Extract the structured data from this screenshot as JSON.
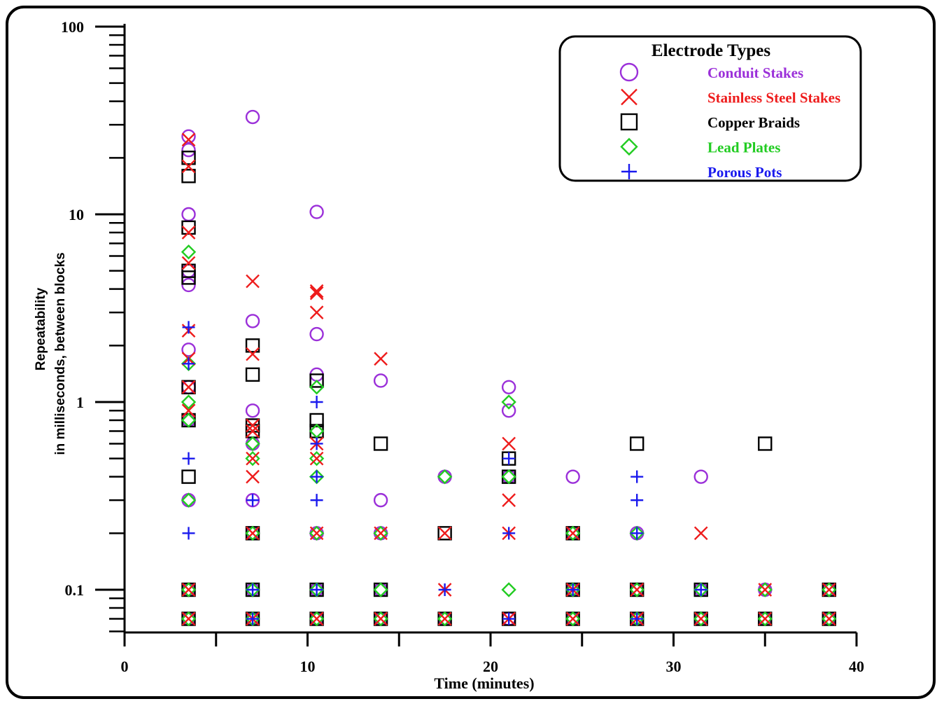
{
  "chart_data": {
    "type": "scatter",
    "xlabel": "Time (minutes)",
    "ylabel_lines": [
      "Repeatability",
      "in milliseconds, between blocks"
    ],
    "xlim": [
      0,
      40
    ],
    "ylim": [
      0.06,
      100
    ],
    "y_scale": "log",
    "x_ticks": [
      0,
      10,
      20,
      30,
      40
    ],
    "x_tick_labels": [
      "0",
      "10",
      "20",
      "30",
      "40"
    ],
    "y_major_ticks": [
      0.1,
      1,
      10,
      100
    ],
    "y_tick_labels": [
      "0.1",
      "1",
      "10",
      "100"
    ],
    "grid": false,
    "legend_position": "top-right",
    "legend_title": "Electrode Types",
    "series": [
      {
        "name": "Conduit Stakes",
        "marker": "circle",
        "color": "#9b30d9",
        "points": [
          [
            3.5,
            26
          ],
          [
            3.5,
            22
          ],
          [
            3.5,
            10
          ],
          [
            3.5,
            5
          ],
          [
            3.5,
            4.2
          ],
          [
            3.5,
            1.9
          ],
          [
            3.5,
            1.2
          ],
          [
            3.5,
            0.8
          ],
          [
            3.5,
            0.3
          ],
          [
            3.5,
            0.1
          ],
          [
            3.5,
            0.07
          ],
          [
            7,
            33
          ],
          [
            7,
            2.7
          ],
          [
            7,
            0.9
          ],
          [
            7,
            0.6
          ],
          [
            7,
            0.3
          ],
          [
            7,
            0.2
          ],
          [
            7,
            0.1
          ],
          [
            7,
            0.07
          ],
          [
            10.5,
            10.3
          ],
          [
            10.5,
            2.3
          ],
          [
            10.5,
            1.4
          ],
          [
            10.5,
            0.2
          ],
          [
            10.5,
            0.1
          ],
          [
            10.5,
            0.07
          ],
          [
            14,
            1.3
          ],
          [
            14,
            0.3
          ],
          [
            14,
            0.2
          ],
          [
            14,
            0.1
          ],
          [
            14,
            0.07
          ],
          [
            17.5,
            0.4
          ],
          [
            17.5,
            0.07
          ],
          [
            21,
            1.2
          ],
          [
            21,
            0.9
          ],
          [
            21,
            0.4
          ],
          [
            21,
            0.07
          ],
          [
            24.5,
            0.4
          ],
          [
            24.5,
            0.2
          ],
          [
            24.5,
            0.1
          ],
          [
            24.5,
            0.07
          ],
          [
            28,
            0.2
          ],
          [
            28,
            0.1
          ],
          [
            28,
            0.07
          ],
          [
            31.5,
            0.4
          ],
          [
            31.5,
            0.1
          ],
          [
            31.5,
            0.07
          ],
          [
            35,
            0.1
          ],
          [
            35,
            0.07
          ],
          [
            38.5,
            0.1
          ],
          [
            38.5,
            0.07
          ]
        ]
      },
      {
        "name": "Stainless Steel Stakes",
        "marker": "x",
        "color": "#ee1c1c",
        "points": [
          [
            3.5,
            25
          ],
          [
            3.5,
            18
          ],
          [
            3.5,
            8
          ],
          [
            3.5,
            5.5
          ],
          [
            3.5,
            2.4
          ],
          [
            3.5,
            1.7
          ],
          [
            3.5,
            1.2
          ],
          [
            3.5,
            0.9
          ],
          [
            3.5,
            0.1
          ],
          [
            3.5,
            0.07
          ],
          [
            7,
            4.4
          ],
          [
            7,
            1.8
          ],
          [
            7,
            0.75
          ],
          [
            7,
            0.7
          ],
          [
            7,
            0.5
          ],
          [
            7,
            0.4
          ],
          [
            7,
            0.2
          ],
          [
            7,
            0.07
          ],
          [
            10.5,
            3.9
          ],
          [
            10.5,
            3.8
          ],
          [
            10.5,
            3.0
          ],
          [
            10.5,
            0.6
          ],
          [
            10.5,
            0.5
          ],
          [
            10.5,
            0.2
          ],
          [
            10.5,
            0.07
          ],
          [
            14,
            1.7
          ],
          [
            14,
            0.2
          ],
          [
            14,
            0.07
          ],
          [
            17.5,
            0.2
          ],
          [
            17.5,
            0.1
          ],
          [
            17.5,
            0.07
          ],
          [
            21,
            0.6
          ],
          [
            21,
            0.3
          ],
          [
            21,
            0.2
          ],
          [
            21,
            0.07
          ],
          [
            24.5,
            0.2
          ],
          [
            24.5,
            0.1
          ],
          [
            24.5,
            0.07
          ],
          [
            28,
            0.1
          ],
          [
            28,
            0.07
          ],
          [
            31.5,
            0.2
          ],
          [
            31.5,
            0.07
          ],
          [
            35,
            0.1
          ],
          [
            35,
            0.07
          ],
          [
            38.5,
            0.1
          ],
          [
            38.5,
            0.07
          ]
        ]
      },
      {
        "name": "Copper Braids",
        "marker": "square",
        "color": "#000000",
        "points": [
          [
            3.5,
            20
          ],
          [
            3.5,
            16
          ],
          [
            3.5,
            8.5
          ],
          [
            3.5,
            5
          ],
          [
            3.5,
            4.6
          ],
          [
            3.5,
            1.2
          ],
          [
            3.5,
            0.8
          ],
          [
            3.5,
            0.4
          ],
          [
            3.5,
            0.1
          ],
          [
            3.5,
            0.07
          ],
          [
            7,
            2.0
          ],
          [
            7,
            1.4
          ],
          [
            7,
            0.75
          ],
          [
            7,
            0.7
          ],
          [
            7,
            0.2
          ],
          [
            7,
            0.1
          ],
          [
            7,
            0.07
          ],
          [
            10.5,
            1.3
          ],
          [
            10.5,
            0.8
          ],
          [
            10.5,
            0.7
          ],
          [
            10.5,
            0.1
          ],
          [
            10.5,
            0.07
          ],
          [
            14,
            0.6
          ],
          [
            14,
            0.1
          ],
          [
            14,
            0.07
          ],
          [
            17.5,
            0.2
          ],
          [
            17.5,
            0.07
          ],
          [
            21,
            0.5
          ],
          [
            21,
            0.4
          ],
          [
            21,
            0.07
          ],
          [
            24.5,
            0.2
          ],
          [
            24.5,
            0.1
          ],
          [
            24.5,
            0.07
          ],
          [
            28,
            0.6
          ],
          [
            28,
            0.1
          ],
          [
            28,
            0.07
          ],
          [
            31.5,
            0.1
          ],
          [
            31.5,
            0.07
          ],
          [
            35,
            0.6
          ],
          [
            35,
            0.07
          ],
          [
            38.5,
            0.1
          ],
          [
            38.5,
            0.07
          ]
        ]
      },
      {
        "name": "Lead Plates",
        "marker": "diamond",
        "color": "#22cc22",
        "points": [
          [
            3.5,
            6.3
          ],
          [
            3.5,
            1.6
          ],
          [
            3.5,
            1.0
          ],
          [
            3.5,
            0.8
          ],
          [
            3.5,
            0.3
          ],
          [
            3.5,
            0.1
          ],
          [
            3.5,
            0.07
          ],
          [
            7,
            0.6
          ],
          [
            7,
            0.5
          ],
          [
            7,
            0.2
          ],
          [
            7,
            0.1
          ],
          [
            7,
            0.07
          ],
          [
            10.5,
            1.2
          ],
          [
            10.5,
            0.7
          ],
          [
            10.5,
            0.5
          ],
          [
            10.5,
            0.4
          ],
          [
            10.5,
            0.2
          ],
          [
            10.5,
            0.1
          ],
          [
            10.5,
            0.07
          ],
          [
            14,
            0.2
          ],
          [
            14,
            0.1
          ],
          [
            14,
            0.07
          ],
          [
            17.5,
            0.4
          ],
          [
            17.5,
            0.07
          ],
          [
            21,
            1.0
          ],
          [
            21,
            0.4
          ],
          [
            21,
            0.1
          ],
          [
            24.5,
            0.2
          ],
          [
            24.5,
            0.1
          ],
          [
            24.5,
            0.07
          ],
          [
            28,
            0.2
          ],
          [
            28,
            0.1
          ],
          [
            28,
            0.07
          ],
          [
            31.5,
            0.1
          ],
          [
            31.5,
            0.07
          ],
          [
            35,
            0.1
          ],
          [
            35,
            0.07
          ],
          [
            38.5,
            0.1
          ],
          [
            38.5,
            0.07
          ]
        ]
      },
      {
        "name": "Porous Pots",
        "marker": "plus",
        "color": "#1a1aee",
        "points": [
          [
            3.5,
            2.5
          ],
          [
            3.5,
            1.6
          ],
          [
            3.5,
            0.5
          ],
          [
            3.5,
            0.2
          ],
          [
            7,
            0.3
          ],
          [
            7,
            0.1
          ],
          [
            7,
            0.07
          ],
          [
            10.5,
            1.0
          ],
          [
            10.5,
            0.6
          ],
          [
            10.5,
            0.4
          ],
          [
            10.5,
            0.3
          ],
          [
            10.5,
            0.1
          ],
          [
            17.5,
            0.1
          ],
          [
            21,
            0.5
          ],
          [
            21,
            0.2
          ],
          [
            21,
            0.07
          ],
          [
            24.5,
            0.1
          ],
          [
            28,
            0.4
          ],
          [
            28,
            0.3
          ],
          [
            28,
            0.2
          ],
          [
            28,
            0.07
          ],
          [
            31.5,
            0.1
          ]
        ]
      }
    ]
  }
}
